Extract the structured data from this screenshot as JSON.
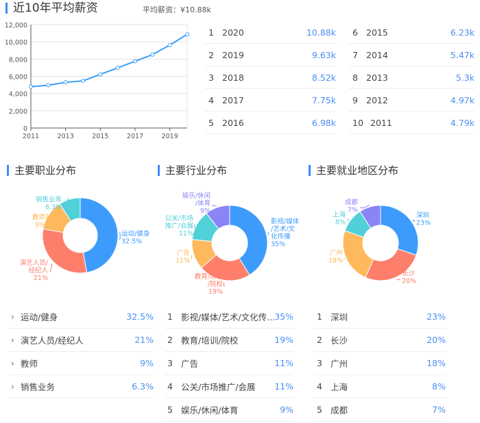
{
  "salary": {
    "title": "近10年平均薪资",
    "avg_label": "平均薪资：¥10.88k",
    "ranking": [
      {
        "rank": "1",
        "year": "2020",
        "value": "10.88k"
      },
      {
        "rank": "2",
        "year": "2019",
        "value": "9.63k"
      },
      {
        "rank": "3",
        "year": "2018",
        "value": "8.52k"
      },
      {
        "rank": "4",
        "year": "2017",
        "value": "7.75k"
      },
      {
        "rank": "5",
        "year": "2016",
        "value": "6.98k"
      },
      {
        "rank": "6",
        "year": "2015",
        "value": "6.23k"
      },
      {
        "rank": "7",
        "year": "2014",
        "value": "5.47k"
      },
      {
        "rank": "8",
        "year": "2013",
        "value": "5.3k"
      },
      {
        "rank": "9",
        "year": "2012",
        "value": "4.97k"
      },
      {
        "rank": "10",
        "year": "2011",
        "value": "4.79k"
      }
    ]
  },
  "occupation": {
    "title": "主要职业分布",
    "items": [
      {
        "label": "运动/健身",
        "value": "32.5%"
      },
      {
        "label": "演艺人员/经纪人",
        "value": "21%"
      },
      {
        "label": "教师",
        "value": "9%"
      },
      {
        "label": "销售业务",
        "value": "6.3%"
      }
    ]
  },
  "industry": {
    "title": "主要行业分布",
    "items": [
      {
        "rank": "1",
        "label": "影视/媒体/艺术/文化传...",
        "value": "35%"
      },
      {
        "rank": "2",
        "label": "教育/培训/院校",
        "value": "19%"
      },
      {
        "rank": "3",
        "label": "广告",
        "value": "11%"
      },
      {
        "rank": "4",
        "label": "公关/市场推广/会展",
        "value": "11%"
      },
      {
        "rank": "5",
        "label": "娱乐/休闲/体育",
        "value": "9%"
      }
    ]
  },
  "region": {
    "title": "主要就业地区分布",
    "items": [
      {
        "rank": "1",
        "label": "深圳",
        "value": "23%"
      },
      {
        "rank": "2",
        "label": "长沙",
        "value": "20%"
      },
      {
        "rank": "3",
        "label": "广州",
        "value": "18%"
      },
      {
        "rank": "4",
        "label": "上海",
        "value": "8%"
      },
      {
        "rank": "5",
        "label": "成都",
        "value": "7%"
      }
    ]
  },
  "colors": {
    "blue": "#3d9cfb",
    "red": "#fd7f6b",
    "orange": "#fdb95b",
    "cyan": "#52d0d9",
    "purple": "#8a84f7",
    "accent": "#3d8af7",
    "value_text": "#4a8ef0"
  },
  "chart_data": [
    {
      "type": "line",
      "title": "近10年平均薪资",
      "x": [
        "2011",
        "2012",
        "2013",
        "2014",
        "2015",
        "2016",
        "2017",
        "2018",
        "2019",
        "2020"
      ],
      "values": [
        4790,
        4970,
        5300,
        5470,
        6230,
        6980,
        7750,
        8520,
        9630,
        10880
      ],
      "xticks": [
        "2011",
        "2013",
        "2015",
        "2017",
        "2019"
      ],
      "yticks": [
        "0",
        "2,000",
        "4,000",
        "6,000",
        "8,000",
        "10,000",
        "12,000"
      ],
      "ylim": [
        0,
        12000
      ],
      "grid": true,
      "xlabel": "",
      "ylabel": ""
    },
    {
      "type": "pie",
      "title": "主要职业分布",
      "categories": [
        "运动/健身",
        "演艺人员/经纪人",
        "教师",
        "销售业务"
      ],
      "values": [
        32.5,
        21,
        9,
        6.3
      ],
      "labels": [
        "运动/健身 32.5%",
        "演艺人员/经纪人 21%",
        "教师 9%",
        "销售业务 6.3%"
      ]
    },
    {
      "type": "pie",
      "title": "主要行业分布",
      "categories": [
        "影视/媒体/艺术/文化传播",
        "教育/培训/院校",
        "广告",
        "公关/市场推广/会展",
        "娱乐/休闲/体育"
      ],
      "values": [
        35,
        19,
        11,
        11,
        9
      ]
    },
    {
      "type": "pie",
      "title": "主要就业地区分布",
      "categories": [
        "深圳",
        "长沙",
        "广州",
        "上海",
        "成都"
      ],
      "values": [
        23,
        20,
        18,
        8,
        7
      ]
    }
  ]
}
